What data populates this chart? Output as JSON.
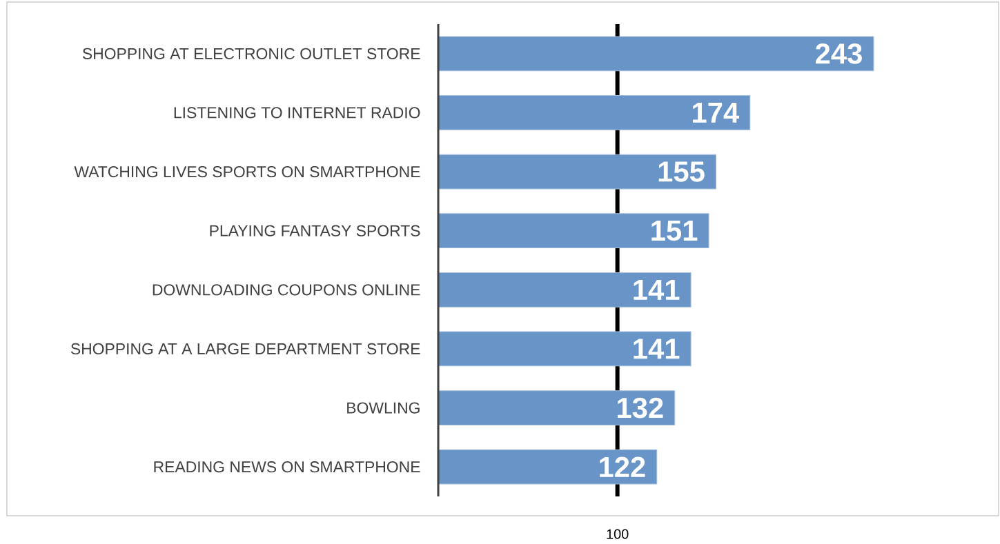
{
  "chart_data": {
    "type": "bar",
    "orientation": "horizontal",
    "categories": [
      "SHOPPING AT ELECTRONIC OUTLET STORE",
      "LISTENING TO INTERNET RADIO",
      "WATCHING LIVES SPORTS ON SMARTPHONE",
      "PLAYING FANTASY SPORTS",
      "DOWNLOADING COUPONS ONLINE",
      "SHOPPING AT A LARGE DEPARTMENT STORE",
      "BOWLING",
      "READING NEWS ON SMARTPHONE"
    ],
    "values": [
      243,
      174,
      155,
      151,
      141,
      141,
      132,
      122
    ],
    "value_labels": [
      "243",
      "174",
      "155",
      "151",
      "141",
      "141",
      "132",
      "122"
    ],
    "color": "#6994c7",
    "ref_lines": [
      {
        "axis": "x",
        "value": 100,
        "label": "100",
        "color": "#000000"
      }
    ]
  }
}
